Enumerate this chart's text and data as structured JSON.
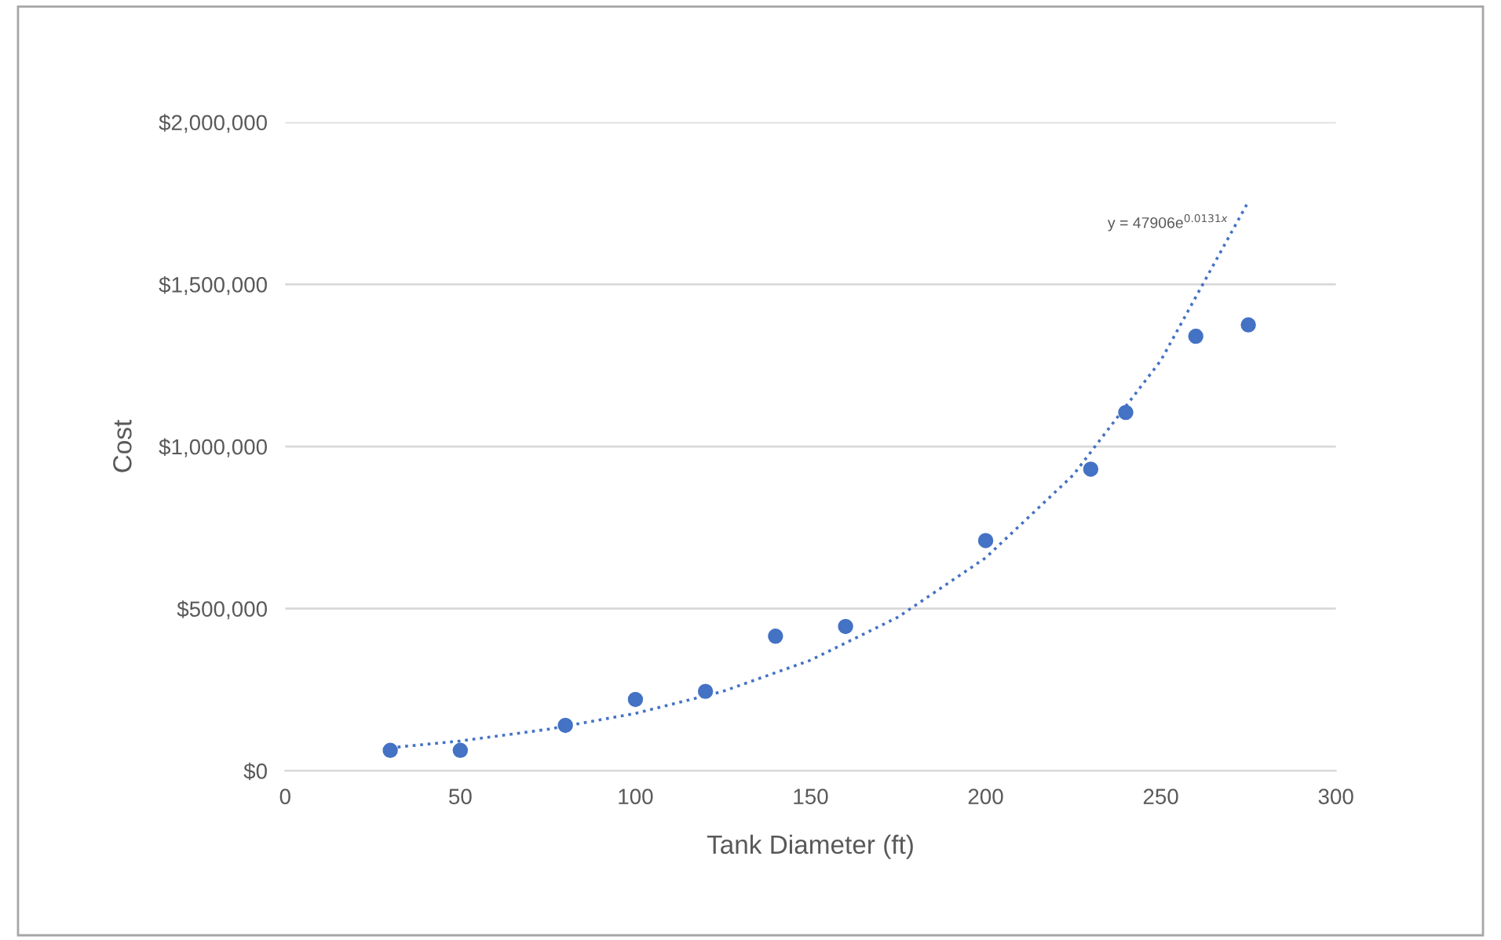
{
  "chart_data": {
    "type": "scatter",
    "xlabel": "Tank Diameter (ft)",
    "ylabel": "Cost",
    "series": [
      {
        "color": "#4472c4",
        "marker": "circle",
        "x": [
          30,
          50,
          80,
          100,
          120,
          140,
          160,
          200,
          230,
          240,
          260,
          275
        ],
        "values": [
          63000,
          63000,
          140000,
          220000,
          245000,
          415000,
          445000,
          710000,
          930000,
          1105000,
          1340000,
          1375000
        ]
      },
      {
        "type": "line",
        "color": "#4472c4",
        "line_style": "dotted",
        "marker": "none",
        "x": [
          30,
          50,
          75,
          100,
          125,
          150,
          175,
          200,
          225,
          250,
          275
        ],
        "values": [
          71000,
          92000,
          128000,
          177000,
          245000,
          341000,
          474000,
          657000,
          912000,
          1265000,
          1755000
        ]
      }
    ],
    "annotations": [
      "y = 47906e$^{0.0131x}$"
    ],
    "xlim": [
      0,
      300
    ],
    "xticks": [
      0,
      50,
      100,
      150,
      200,
      250,
      300
    ],
    "ylim": [
      0,
      2000000
    ],
    "yticks": [
      {
        "value": 0,
        "label": "$0"
      },
      {
        "value": 500000,
        "label": "$500,000"
      },
      {
        "value": 1000000,
        "label": "$1,000,000"
      },
      {
        "value": 1500000,
        "label": "$1,500,000"
      },
      {
        "value": 2000000,
        "label": "$2,000,000"
      }
    ],
    "grid": "y",
    "legend": false
  }
}
